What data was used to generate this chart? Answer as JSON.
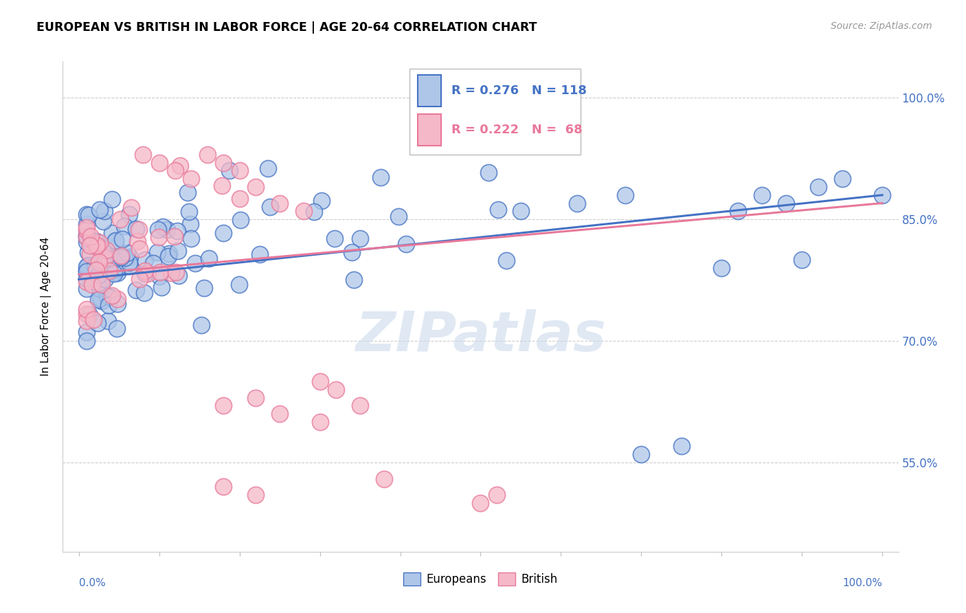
{
  "title": "EUROPEAN VS BRITISH IN LABOR FORCE | AGE 20-64 CORRELATION CHART",
  "source": "Source: ZipAtlas.com",
  "ylabel": "In Labor Force | Age 20-64",
  "ytick_labels": [
    "55.0%",
    "70.0%",
    "85.0%",
    "100.0%"
  ],
  "ytick_values": [
    0.55,
    0.7,
    0.85,
    1.0
  ],
  "xlim": [
    -0.02,
    1.02
  ],
  "ylim": [
    0.44,
    1.045
  ],
  "legend_R_european": "R = 0.276",
  "legend_N_european": "N = 118",
  "legend_R_british": "R = 0.222",
  "legend_N_british": "N =  68",
  "color_european": "#aec6e8",
  "color_british": "#f5b8c8",
  "color_line_european": "#4472c4",
  "color_line_british": "#e8789a",
  "watermark": "ZIPatlas",
  "trendline_eu_x0": 0.0,
  "trendline_eu_y0": 0.776,
  "trendline_eu_x1": 1.0,
  "trendline_eu_y1": 0.88,
  "trendline_br_x0": 0.0,
  "trendline_br_y0": 0.782,
  "trendline_br_x1": 1.0,
  "trendline_br_y1": 0.87,
  "eu_seed": 77,
  "br_seed": 55,
  "eu_N": 118,
  "br_N": 68,
  "eu_R": 0.276,
  "br_R": 0.222
}
